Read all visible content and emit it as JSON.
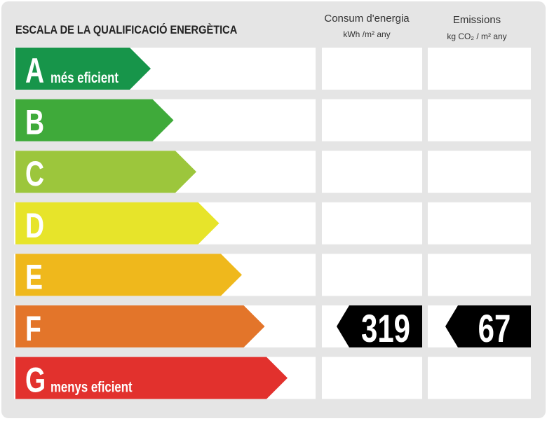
{
  "header": {
    "title": "ESCALA DE LA QUALIFICACIÓ ENERGÈTICA",
    "columns": [
      {
        "name": "Consum d'energia",
        "unit": "kWh /m² any"
      },
      {
        "name": "Emissions",
        "unit": "kg CO₂ / m² any"
      }
    ]
  },
  "rows": [
    {
      "letter": "A",
      "label": "més eficient",
      "color": "#17954a"
    },
    {
      "letter": "B",
      "color": "#3faa3a"
    },
    {
      "letter": "C",
      "color": "#9cc63c"
    },
    {
      "letter": "D",
      "color": "#e7e42a"
    },
    {
      "letter": "E",
      "color": "#efb81c"
    },
    {
      "letter": "F",
      "color": "#e3752a",
      "consumption": 319,
      "emissions": 67
    },
    {
      "letter": "G",
      "label": "menys eficient",
      "color": "#e2312d"
    }
  ]
}
